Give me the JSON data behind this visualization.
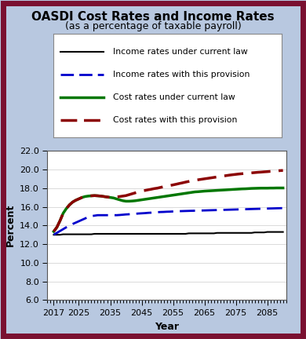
{
  "title": "OASDI Cost Rates and Income Rates",
  "subtitle": "(as a percentage of taxable payroll)",
  "xlabel": "Year",
  "ylabel": "Percent",
  "bg_color": "#b8c8e0",
  "border_color": "#7a1030",
  "plot_bg_color": "#ffffff",
  "ylim": [
    6.0,
    22.0
  ],
  "yticks": [
    6.0,
    8.0,
    10.0,
    12.0,
    14.0,
    16.0,
    18.0,
    20.0,
    22.0
  ],
  "xlim": [
    2015,
    2091
  ],
  "xticks": [
    2017,
    2025,
    2035,
    2045,
    2055,
    2065,
    2075,
    2085
  ],
  "years": [
    2017,
    2018,
    2019,
    2020,
    2021,
    2022,
    2023,
    2024,
    2025,
    2026,
    2027,
    2028,
    2029,
    2030,
    2031,
    2032,
    2033,
    2034,
    2035,
    2036,
    2037,
    2038,
    2039,
    2040,
    2041,
    2042,
    2043,
    2044,
    2045,
    2046,
    2047,
    2048,
    2049,
    2050,
    2051,
    2052,
    2053,
    2054,
    2055,
    2056,
    2057,
    2058,
    2059,
    2060,
    2061,
    2062,
    2063,
    2064,
    2065,
    2066,
    2067,
    2068,
    2069,
    2070,
    2071,
    2072,
    2073,
    2074,
    2075,
    2076,
    2077,
    2078,
    2079,
    2080,
    2081,
    2082,
    2083,
    2084,
    2085,
    2086,
    2087,
    2088,
    2089,
    2090
  ],
  "income_current": [
    13.0,
    13.0,
    13.0,
    13.05,
    13.05,
    13.05,
    13.05,
    13.05,
    13.05,
    13.05,
    13.05,
    13.05,
    13.05,
    13.1,
    13.1,
    13.1,
    13.1,
    13.1,
    13.1,
    13.1,
    13.1,
    13.1,
    13.1,
    13.1,
    13.1,
    13.1,
    13.1,
    13.1,
    13.1,
    13.1,
    13.1,
    13.1,
    13.1,
    13.1,
    13.1,
    13.1,
    13.1,
    13.1,
    13.1,
    13.1,
    13.1,
    13.1,
    13.1,
    13.15,
    13.15,
    13.15,
    13.15,
    13.15,
    13.15,
    13.15,
    13.15,
    13.15,
    13.2,
    13.2,
    13.2,
    13.2,
    13.2,
    13.2,
    13.2,
    13.2,
    13.2,
    13.2,
    13.2,
    13.2,
    13.25,
    13.25,
    13.25,
    13.25,
    13.3,
    13.3,
    13.3,
    13.3,
    13.3,
    13.3
  ],
  "income_provision": [
    13.0,
    13.2,
    13.4,
    13.6,
    13.8,
    14.0,
    14.15,
    14.3,
    14.45,
    14.6,
    14.75,
    14.9,
    15.0,
    15.05,
    15.1,
    15.1,
    15.1,
    15.1,
    15.1,
    15.1,
    15.1,
    15.12,
    15.15,
    15.18,
    15.2,
    15.22,
    15.25,
    15.28,
    15.3,
    15.32,
    15.35,
    15.37,
    15.4,
    15.42,
    15.44,
    15.45,
    15.47,
    15.48,
    15.5,
    15.52,
    15.53,
    15.54,
    15.55,
    15.56,
    15.57,
    15.58,
    15.59,
    15.6,
    15.61,
    15.62,
    15.63,
    15.64,
    15.65,
    15.66,
    15.67,
    15.68,
    15.69,
    15.7,
    15.71,
    15.72,
    15.73,
    15.74,
    15.75,
    15.76,
    15.77,
    15.78,
    15.79,
    15.8,
    15.81,
    15.82,
    15.83,
    15.84,
    15.85,
    15.86
  ],
  "cost_current": [
    13.35,
    13.8,
    14.5,
    15.3,
    15.8,
    16.2,
    16.5,
    16.7,
    16.85,
    17.0,
    17.1,
    17.15,
    17.18,
    17.2,
    17.18,
    17.15,
    17.1,
    17.05,
    17.0,
    16.95,
    16.85,
    16.75,
    16.65,
    16.6,
    16.6,
    16.62,
    16.65,
    16.7,
    16.75,
    16.8,
    16.85,
    16.9,
    16.95,
    17.0,
    17.05,
    17.1,
    17.15,
    17.2,
    17.25,
    17.3,
    17.35,
    17.4,
    17.45,
    17.5,
    17.55,
    17.6,
    17.62,
    17.65,
    17.68,
    17.7,
    17.72,
    17.74,
    17.76,
    17.78,
    17.8,
    17.82,
    17.84,
    17.86,
    17.88,
    17.9,
    17.92,
    17.93,
    17.95,
    17.97,
    17.98,
    17.99,
    18.0,
    18.0,
    18.0,
    18.01,
    18.01,
    18.02,
    18.02,
    18.02
  ],
  "cost_provision": [
    13.35,
    13.8,
    14.5,
    15.3,
    15.8,
    16.2,
    16.5,
    16.7,
    16.85,
    17.0,
    17.1,
    17.15,
    17.18,
    17.2,
    17.18,
    17.15,
    17.1,
    17.05,
    17.0,
    17.0,
    17.05,
    17.1,
    17.15,
    17.2,
    17.3,
    17.4,
    17.5,
    17.6,
    17.7,
    17.75,
    17.82,
    17.88,
    17.95,
    18.0,
    18.08,
    18.15,
    18.22,
    18.28,
    18.35,
    18.42,
    18.5,
    18.57,
    18.65,
    18.72,
    18.8,
    18.85,
    18.9,
    18.95,
    19.0,
    19.05,
    19.1,
    19.15,
    19.2,
    19.25,
    19.3,
    19.35,
    19.4,
    19.44,
    19.48,
    19.52,
    19.55,
    19.58,
    19.61,
    19.64,
    19.67,
    19.7,
    19.72,
    19.75,
    19.77,
    19.8,
    19.82,
    19.85,
    19.88,
    19.9
  ],
  "legend_entries": [
    {
      "label": "Income rates under current law",
      "color": "#000000",
      "linestyle": "solid",
      "linewidth": 1.5
    },
    {
      "label": "Income rates with this provision",
      "color": "#0000cc",
      "linestyle": "dashed",
      "linewidth": 2.0
    },
    {
      "label": "Cost rates under current law",
      "color": "#007700",
      "linestyle": "solid",
      "linewidth": 2.5
    },
    {
      "label": "Cost rates with this provision",
      "color": "#8b0000",
      "linestyle": "dashed",
      "linewidth": 2.5
    }
  ]
}
